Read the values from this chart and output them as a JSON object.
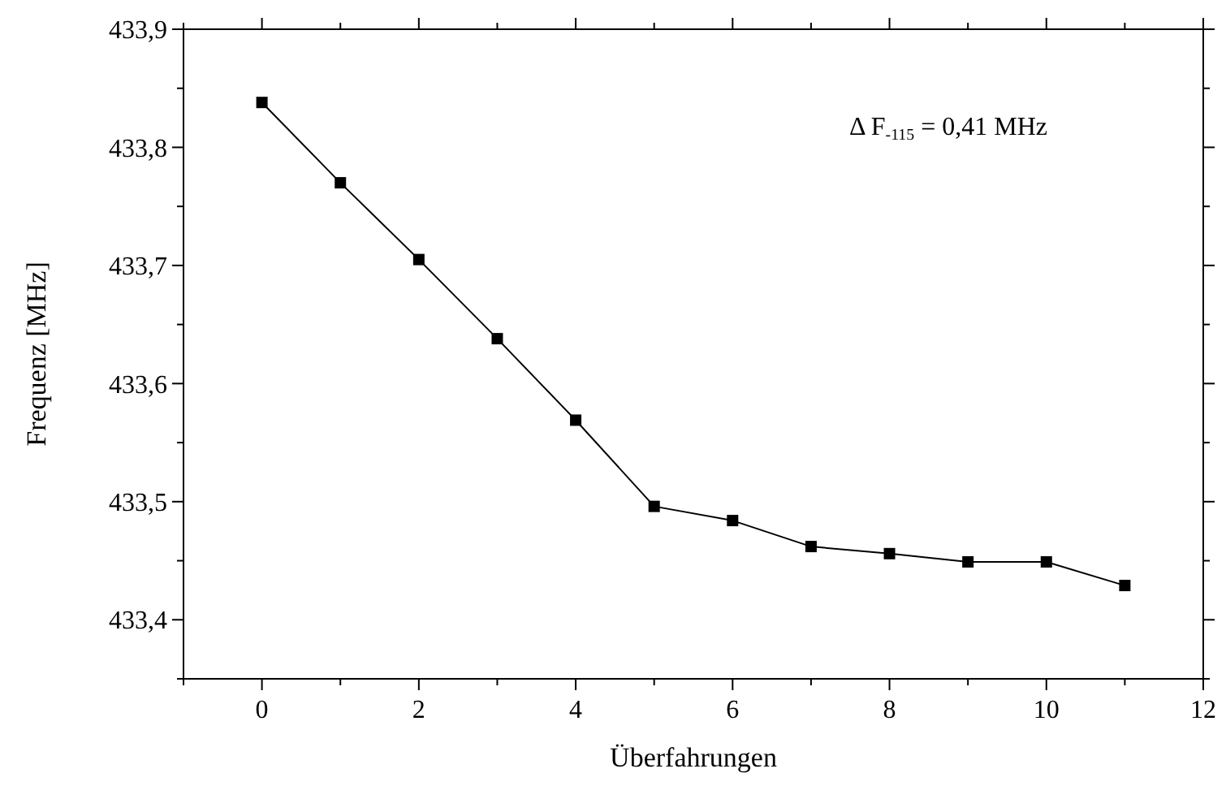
{
  "chart_data": {
    "type": "line",
    "xlabel": "Überfahrungen",
    "ylabel": "Frequenz [MHz]",
    "x": [
      0,
      1,
      2,
      3,
      4,
      5,
      6,
      7,
      8,
      9,
      10,
      11
    ],
    "series": [
      {
        "color": "#000000",
        "values": [
          433.838,
          433.77,
          433.705,
          433.638,
          433.569,
          433.496,
          433.484,
          433.462,
          433.456,
          433.449,
          433.449,
          433.429
        ]
      }
    ],
    "xlim": [
      -1,
      12
    ],
    "xticks": [
      {
        "value": -1,
        "label": null
      },
      0,
      {
        "value": 1,
        "label": null
      },
      2,
      {
        "value": 3,
        "label": null
      },
      4,
      {
        "value": 5,
        "label": null
      },
      6,
      {
        "value": 7,
        "label": null
      },
      8,
      {
        "value": 9,
        "label": null
      },
      10,
      {
        "value": 11,
        "label": null
      },
      12
    ],
    "ylim": [
      433.35,
      433.9
    ],
    "yticks": [
      {
        "value": 433.35,
        "label": null
      },
      {
        "value": 433.4,
        "label": "433,4"
      },
      {
        "value": 433.45,
        "label": null
      },
      {
        "value": 433.5,
        "label": "433,5"
      },
      {
        "value": 433.55,
        "label": null
      },
      {
        "value": 433.6,
        "label": "433,6"
      },
      {
        "value": 433.65,
        "label": null
      },
      {
        "value": 433.7,
        "label": "433,7"
      },
      {
        "value": 433.75,
        "label": null
      },
      {
        "value": 433.8,
        "label": "433,8"
      },
      {
        "value": 433.85,
        "label": null
      },
      {
        "value": 433.9,
        "label": "433,9"
      }
    ],
    "annotations": [
      "Δ F$_{-115}$ = 0,41 MHz"
    ],
    "marker": "square",
    "line_style": "solid",
    "grid": false
  }
}
